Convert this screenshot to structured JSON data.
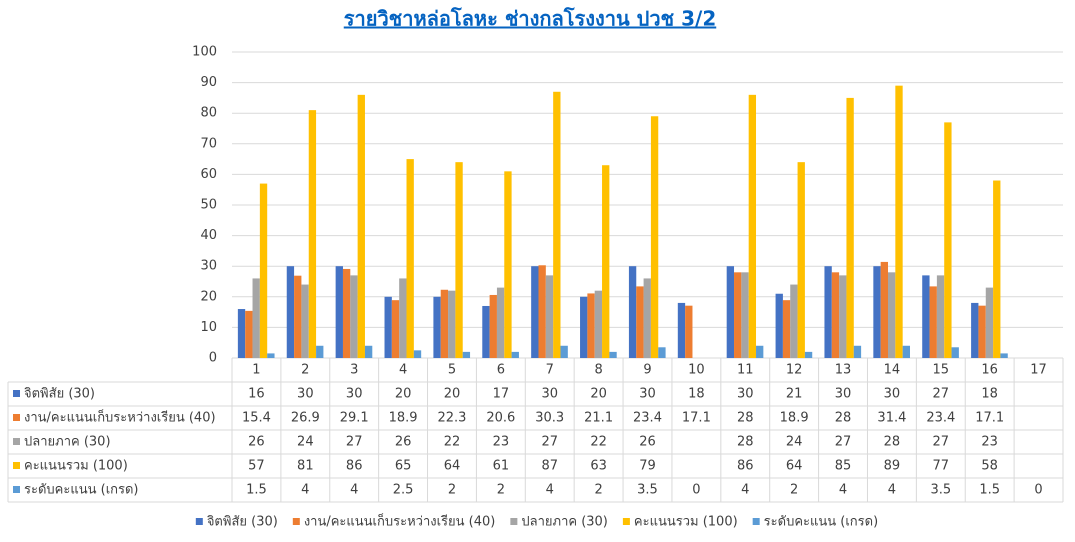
{
  "chart_data": {
    "type": "bar",
    "title": "รายวิชาหล่อโลหะ ช่างกลโรงงาน ปวช 3/2",
    "categories": [
      "1",
      "2",
      "3",
      "4",
      "5",
      "6",
      "7",
      "8",
      "9",
      "10",
      "11",
      "12",
      "13",
      "14",
      "15",
      "16",
      "17"
    ],
    "series": [
      {
        "name": "จิตพิสัย (30)",
        "color": "#4472c4",
        "values": [
          16,
          30,
          30,
          20,
          20,
          17,
          30,
          20,
          30,
          18,
          30,
          21,
          30,
          30,
          27,
          18,
          null
        ]
      },
      {
        "name": "งาน/คะแนนเก็บระหว่างเรียน (40)",
        "color": "#ed7d31",
        "values": [
          15.4,
          26.9,
          29.1,
          18.9,
          22.3,
          20.6,
          30.3,
          21.1,
          23.4,
          17.1,
          28,
          18.9,
          28,
          31.4,
          23.4,
          17.1,
          null
        ]
      },
      {
        "name": "ปลายภาค (30)",
        "color": "#a5a5a5",
        "values": [
          26,
          24,
          27,
          26,
          22,
          23,
          27,
          22,
          26,
          null,
          28,
          24,
          27,
          28,
          27,
          23,
          null
        ]
      },
      {
        "name": "คะแนนรวม (100)",
        "color": "#ffc000",
        "values": [
          57,
          81,
          86,
          65,
          64,
          61,
          87,
          63,
          79,
          null,
          86,
          64,
          85,
          89,
          77,
          58,
          null
        ]
      },
      {
        "name": "ระดับคะแนน (เกรด)",
        "color": "#5b9bd5",
        "values": [
          1.5,
          4,
          4,
          2.5,
          2,
          2,
          4,
          2,
          3.5,
          0,
          4,
          2,
          4,
          4,
          3.5,
          1.5,
          0
        ]
      }
    ],
    "ylim": [
      0,
      100
    ],
    "yticks": [
      0,
      10,
      20,
      30,
      40,
      50,
      60,
      70,
      80,
      90,
      100
    ],
    "grid": true
  }
}
